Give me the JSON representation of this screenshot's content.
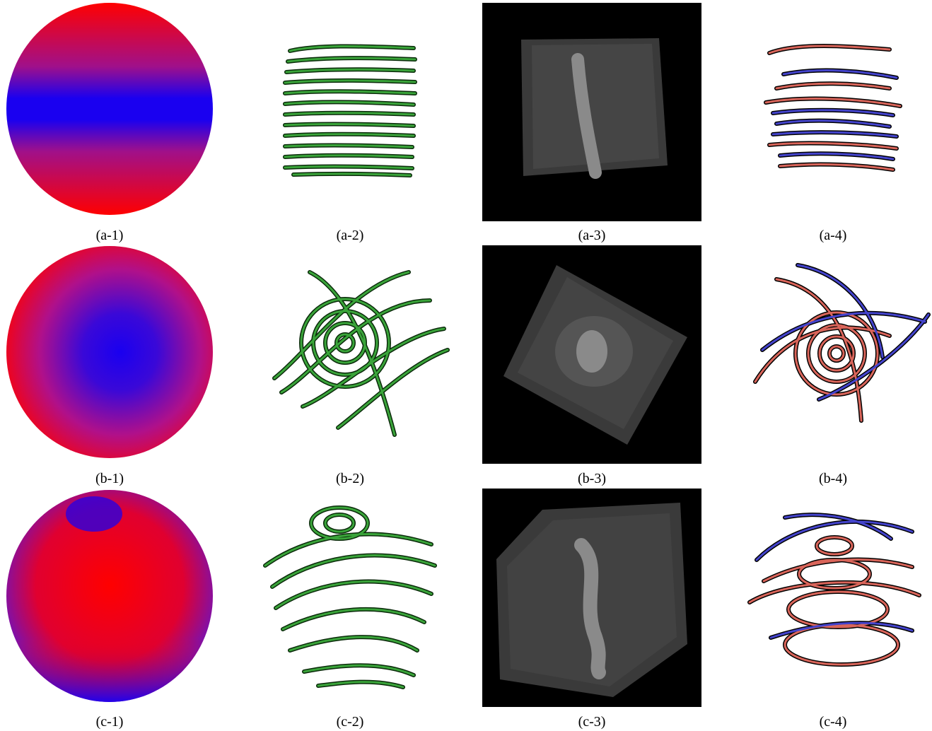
{
  "captions": {
    "a1": "(a-1)",
    "a2": "(a-2)",
    "a3": "(a-3)",
    "a4": "(a-4)",
    "b1": "(b-1)",
    "b2": "(b-2)",
    "b3": "(b-3)",
    "b4": "(b-4)",
    "c1": "(c-1)",
    "c2": "(c-2)",
    "c3": "(c-3)",
    "c4": "(c-4)"
  },
  "colors": {
    "red": "#ff0000",
    "blue": "#1a00f0",
    "green_tube": "#3aa43a",
    "green_edge": "#0a2a0a",
    "salmon_tube": "#d9655a",
    "violet_tube": "#4444cc",
    "volume_bg": "#000000"
  }
}
